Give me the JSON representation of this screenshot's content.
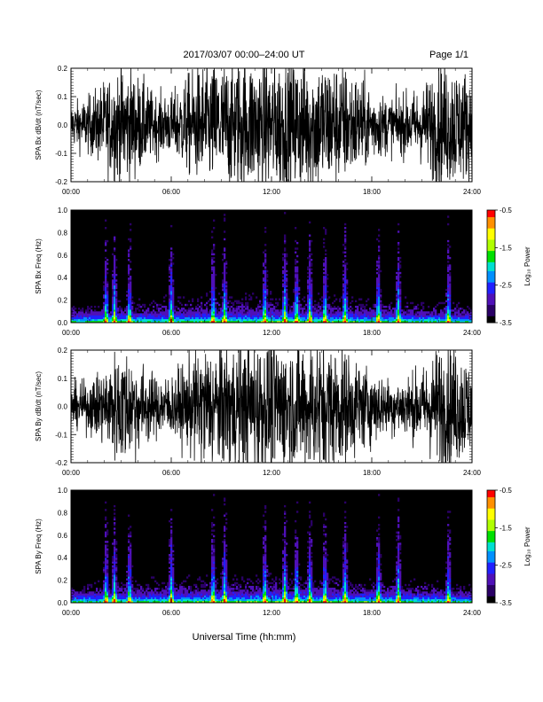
{
  "header": {
    "title": "2017/03/07   00:00–24:00 UT",
    "page": "Page 1/1"
  },
  "colors": {
    "background": "#ffffff",
    "trace": "#000000",
    "spectrogram_background": "#000000"
  },
  "colorscale": [
    "#000000",
    "#2a0066",
    "#4f10b8",
    "#2020ff",
    "#0090ff",
    "#00e0d0",
    "#00e000",
    "#b0ff00",
    "#ffff00",
    "#ff9000",
    "#ff0000"
  ],
  "chart_data": [
    {
      "id": "bx_dbdt",
      "type": "line",
      "ylabel": "SPA Bx dB/dt (nT/sec)",
      "ylim": [
        -0.2,
        0.2
      ],
      "yticks": [
        "0.2",
        "0.1",
        "0.0",
        "-0.1",
        "-0.2"
      ],
      "ytick_values": [
        0.2,
        0.1,
        0.0,
        -0.1,
        -0.2
      ],
      "xlim": [
        0,
        24
      ],
      "xticks": [
        "00:00",
        "06:00",
        "12:00",
        "18:00",
        "24:00"
      ],
      "xtick_values": [
        0,
        6,
        12,
        18,
        24
      ],
      "envelope_hours": [
        0,
        1,
        2,
        3,
        4,
        5,
        6,
        7,
        8,
        9,
        10,
        11,
        12,
        13,
        14,
        15,
        16,
        17,
        18,
        19,
        20,
        21,
        22,
        23,
        24
      ],
      "envelope_amplitude": [
        0.07,
        0.09,
        0.14,
        0.2,
        0.16,
        0.1,
        0.1,
        0.16,
        0.2,
        0.2,
        0.22,
        0.22,
        0.22,
        0.22,
        0.22,
        0.22,
        0.2,
        0.17,
        0.12,
        0.09,
        0.1,
        0.12,
        0.2,
        0.2,
        0.16
      ]
    },
    {
      "id": "bx_spec",
      "type": "heatmap",
      "ylabel": "SPA Bx Freq (Hz)",
      "ylim": [
        0.0,
        1.0
      ],
      "yticks": [
        "1.0",
        "0.8",
        "0.6",
        "0.4",
        "0.2",
        "0.0"
      ],
      "ytick_values": [
        1.0,
        0.8,
        0.6,
        0.4,
        0.2,
        0.0
      ],
      "xlim": [
        0,
        24
      ],
      "xticks": [
        "00:00",
        "06:00",
        "12:00",
        "18:00",
        "24:00"
      ],
      "xtick_values": [
        0,
        6,
        12,
        18,
        24
      ],
      "colorbar_label": "Log₁₀ Power",
      "colorbar_ticks": [
        "-0.5",
        "-1.5",
        "-2.5",
        "-3.5"
      ],
      "colorbar_tick_values": [
        -0.5,
        -1.5,
        -2.5,
        -3.5
      ],
      "clim": [
        -3.5,
        -0.5
      ],
      "bursts_hours": [
        2.1,
        2.6,
        3.5,
        6.0,
        8.5,
        9.2,
        11.6,
        12.8,
        13.5,
        14.3,
        15.2,
        16.4,
        18.4,
        19.6,
        22.6
      ]
    },
    {
      "id": "by_dbdt",
      "type": "line",
      "ylabel": "SPA By dB/dt (nT/sec)",
      "ylim": [
        -0.2,
        0.2
      ],
      "yticks": [
        "0.2",
        "0.1",
        "0.0",
        "-0.1",
        "-0.2"
      ],
      "ytick_values": [
        0.2,
        0.1,
        0.0,
        -0.1,
        -0.2
      ],
      "xlim": [
        0,
        24
      ],
      "xticks": [
        "00:00",
        "06:00",
        "12:00",
        "18:00",
        "24:00"
      ],
      "xtick_values": [
        0,
        6,
        12,
        18,
        24
      ],
      "envelope_hours": [
        0,
        1,
        2,
        3,
        4,
        5,
        6,
        7,
        8,
        9,
        10,
        11,
        12,
        13,
        14,
        15,
        16,
        17,
        18,
        19,
        20,
        21,
        22,
        23,
        24
      ],
      "envelope_amplitude": [
        0.07,
        0.08,
        0.13,
        0.2,
        0.15,
        0.1,
        0.1,
        0.15,
        0.2,
        0.2,
        0.21,
        0.22,
        0.22,
        0.22,
        0.22,
        0.22,
        0.2,
        0.16,
        0.12,
        0.09,
        0.1,
        0.12,
        0.2,
        0.2,
        0.15
      ]
    },
    {
      "id": "by_spec",
      "type": "heatmap",
      "ylabel": "SPA By Freq (Hz)",
      "ylim": [
        0.0,
        1.0
      ],
      "yticks": [
        "1.0",
        "0.8",
        "0.6",
        "0.4",
        "0.2",
        "0.0"
      ],
      "ytick_values": [
        1.0,
        0.8,
        0.6,
        0.4,
        0.2,
        0.0
      ],
      "xlim": [
        0,
        24
      ],
      "xticks": [
        "00:00",
        "06:00",
        "12:00",
        "18:00",
        "24:00"
      ],
      "xtick_values": [
        0,
        6,
        12,
        18,
        24
      ],
      "colorbar_label": "Log₁₀ Power",
      "colorbar_ticks": [
        "-0.5",
        "-1.5",
        "-2.5",
        "-3.5"
      ],
      "colorbar_tick_values": [
        -0.5,
        -1.5,
        -2.5,
        -3.5
      ],
      "clim": [
        -3.5,
        -0.5
      ],
      "bursts_hours": [
        2.1,
        2.6,
        3.5,
        6.0,
        8.5,
        9.2,
        11.6,
        12.8,
        13.5,
        14.3,
        15.2,
        16.4,
        18.4,
        19.6,
        22.6
      ]
    }
  ],
  "xlabel": "Universal Time (hh:mm)"
}
